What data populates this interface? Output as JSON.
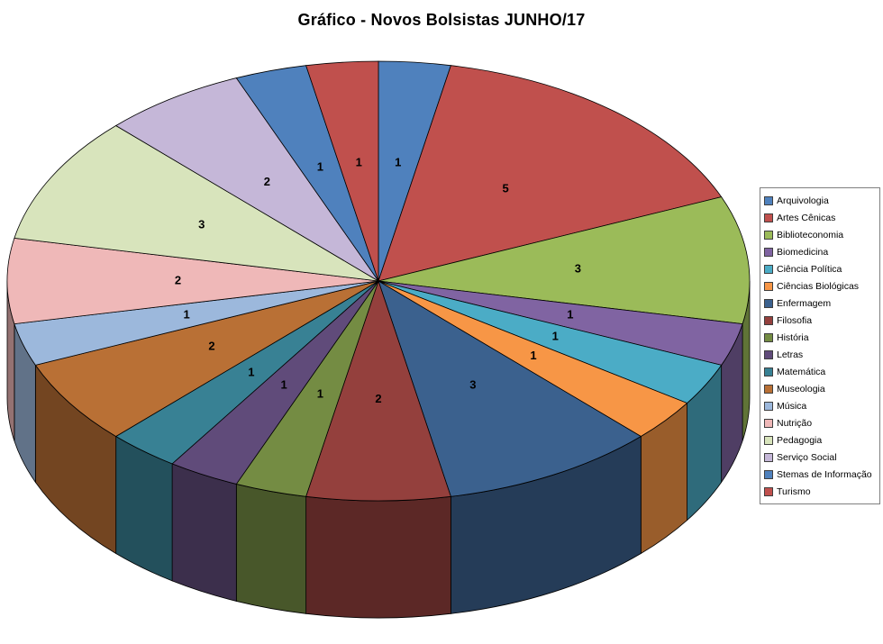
{
  "title": "Gráfico - Novos Bolsistas JUNHO/17",
  "chart_data": {
    "type": "pie",
    "style": "3d-pie",
    "title": "Gráfico - Novos Bolsistas JUNHO/17",
    "legend_position": "right",
    "data_labels": "value",
    "direction": "clockwise",
    "start_angle_deg": 0,
    "total": 32,
    "categories": [
      "Arquivologia",
      "Artes Cênicas",
      "Biblioteconomia",
      "Biomedicina",
      "Ciência Política",
      "Ciências Biológicas",
      "Enfermagem",
      "Filosofia",
      "História",
      "Letras",
      "Matemática",
      "Museologia",
      "Música",
      "Nutrição",
      "Pedagogia",
      "Serviço Social",
      "Stemas de Informação",
      "Turismo"
    ],
    "values": [
      1,
      5,
      3,
      1,
      1,
      1,
      3,
      2,
      1,
      1,
      1,
      2,
      1,
      2,
      3,
      2,
      1,
      1
    ],
    "colors": [
      "#4F81BD",
      "#C0504D",
      "#9BBB59",
      "#8064A2",
      "#4BACC6",
      "#F79646",
      "#3B618E",
      "#94403D",
      "#748C43",
      "#604B7A",
      "#388194",
      "#B97035",
      "#9CB8DC",
      "#EFB8B8",
      "#D8E4BC",
      "#C5B7D8",
      "#4F81BD",
      "#C0504D"
    ],
    "outline_color": "#000000",
    "background_color": "#FFFFFF"
  }
}
